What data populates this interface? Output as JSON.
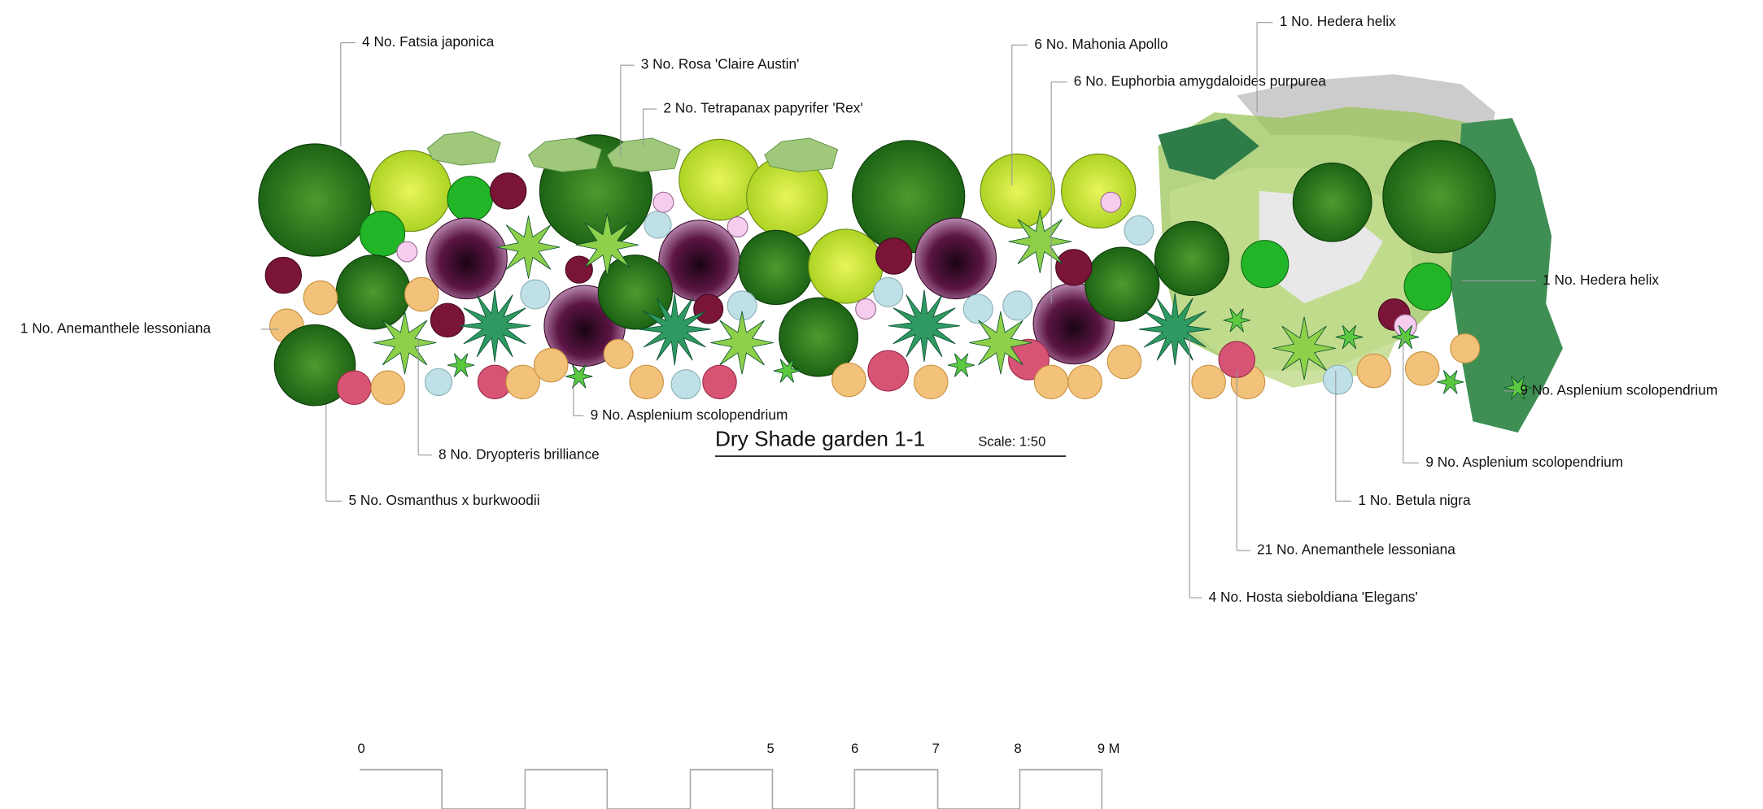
{
  "title": "Dry Shade garden  1-1",
  "scale": "Scale: 1:50",
  "labels": [
    {
      "text": "4 No. Fatsia japonica"
    },
    {
      "text": "3 No. Rosa 'Claire Austin'"
    },
    {
      "text": "2 No. Tetrapanax papyrifer 'Rex'"
    },
    {
      "text": "6 No. Mahonia Apollo"
    },
    {
      "text": "6 No.  Euphorbia amygdaloides purpurea"
    },
    {
      "text": "1 No. Hedera helix"
    },
    {
      "text": "1 No. Hedera helix"
    },
    {
      "text": "1 No. Anemanthele lessoniana"
    },
    {
      "text": "9 No. Asplenium scolopendrium"
    },
    {
      "text": "9 No. Asplenium scolopendrium"
    },
    {
      "text": "9 No. Asplenium scolopendrium"
    },
    {
      "text": "8 No. Dryopteris brilliance"
    },
    {
      "text": "5 No. Osmanthus x burkwoodii"
    },
    {
      "text": "1 No. Betula nigra"
    },
    {
      "text": "21 No. Anemanthele lessoniana"
    },
    {
      "text": "4 No. Hosta sieboldiana 'Elegans'"
    }
  ],
  "scale_bar": [
    "0",
    "5",
    "6",
    "7",
    "8",
    "9 M"
  ]
}
